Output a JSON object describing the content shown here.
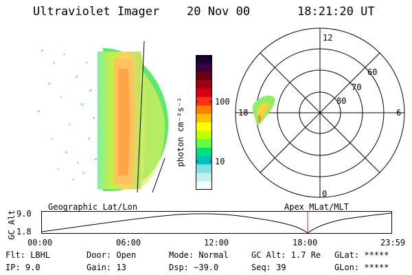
{
  "header": {
    "instrument": "Ultraviolet Imager",
    "date": "20 Nov 00",
    "time": "18:21:20 UT"
  },
  "colorbar": {
    "unit_label": "photon cm⁻²s⁻¹",
    "ticks": [
      "100",
      "10"
    ],
    "colors": [
      "#1a0030",
      "#3a0040",
      "#6a0010",
      "#a00010",
      "#d80010",
      "#ff3010",
      "#ff8000",
      "#ffc000",
      "#ffff00",
      "#c0ff00",
      "#60ff40",
      "#00e080",
      "#00c0c0",
      "#80e0e0",
      "#c0f0f0",
      "#f0ffff"
    ]
  },
  "polar_plot": {
    "mlt_labels": {
      "top": "12",
      "left": "18",
      "right": "6",
      "bottom": "0"
    },
    "lat_labels": [
      "60",
      "70",
      "80"
    ]
  },
  "timeline": {
    "axis_label": "GC Alt",
    "y_ticks": [
      "9.0",
      "1.8"
    ],
    "left_title": "Geographic Lat/Lon",
    "right_title": "Apex MLat/MLT",
    "x_ticks": [
      "00:00",
      "06:00",
      "12:00",
      "18:00",
      "23:59"
    ],
    "marker_color": "#e02020"
  },
  "status": {
    "flt": "Flt: LBHL",
    "ip": "IP: 9.0",
    "door": "Door: Open",
    "gain": "Gain: 13",
    "mode": "Mode: Normal",
    "dsp": "Dsp: −39.0",
    "gc_alt": "GC Alt: 1.7 Re",
    "seq": "Seq: 39",
    "glat": "GLat: *****",
    "glon": "GLon: *****"
  }
}
